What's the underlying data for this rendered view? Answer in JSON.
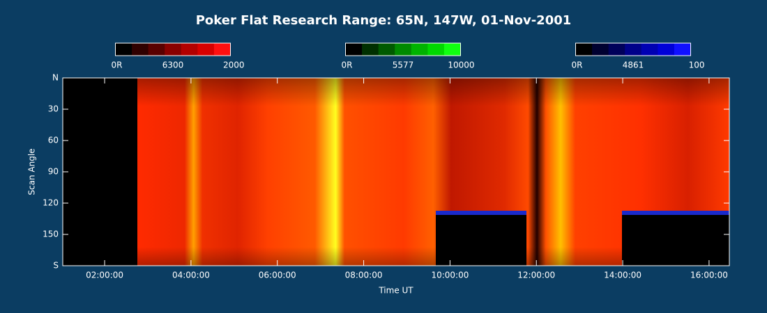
{
  "chart_data": {
    "type": "keogram",
    "title": "Poker Flat Research Range: 65N, 147W, 01-Nov-2001",
    "colorbars": [
      {
        "low": "0R",
        "name": "6300",
        "high": "2000",
        "colors": [
          "#000000",
          "#300000",
          "#5a0000",
          "#8a0000",
          "#b30000",
          "#d80000",
          "#ff1010"
        ]
      },
      {
        "low": "0R",
        "name": "5577",
        "high": "10000",
        "colors": [
          "#000000",
          "#003000",
          "#005a00",
          "#008a00",
          "#00b300",
          "#00d800",
          "#10ff10"
        ]
      },
      {
        "low": "0R",
        "name": "4861",
        "high": "100",
        "colors": [
          "#000000",
          "#000030",
          "#00005a",
          "#00008a",
          "#0000b3",
          "#0000d8",
          "#1010ff"
        ]
      }
    ],
    "x_label": "Time UT",
    "y_label": "Scan Angle",
    "xlim": [
      1.03,
      16.47
    ],
    "xticks": [
      {
        "value": 2,
        "label": "02:00:00"
      },
      {
        "value": 4,
        "label": "04:00:00"
      },
      {
        "value": 6,
        "label": "06:00:00"
      },
      {
        "value": 8,
        "label": "08:00:00"
      },
      {
        "value": 10,
        "label": "10:00:00"
      },
      {
        "value": 12,
        "label": "12:00:00"
      },
      {
        "value": 14,
        "label": "14:00:00"
      },
      {
        "value": 16,
        "label": "16:00:00"
      }
    ],
    "ylim": [
      0,
      180
    ],
    "yticks": [
      {
        "value": 0,
        "label": "N"
      },
      30,
      60,
      90,
      120,
      150,
      {
        "value": 180,
        "label": "S"
      }
    ]
  }
}
